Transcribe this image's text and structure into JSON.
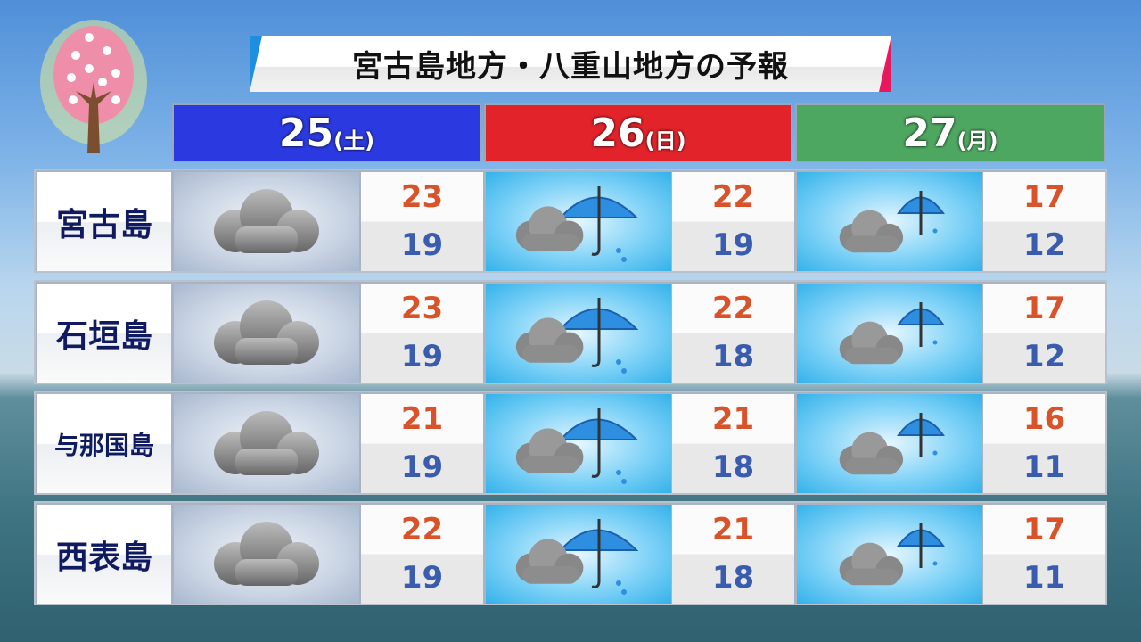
{
  "title": "宮古島地方・八重山地方の予報",
  "days": [
    {
      "num": "25",
      "weekday": "(土)",
      "color": "#2b3ae0"
    },
    {
      "num": "26",
      "weekday": "(日)",
      "color": "#e2232a"
    },
    {
      "num": "27",
      "weekday": "(月)",
      "color": "#4ea760"
    }
  ],
  "rows": [
    {
      "place": "宮古島",
      "forecast": [
        {
          "icon": "cloud-icon",
          "high": "23",
          "low": "19"
        },
        {
          "icon": "cloud-rain-icon",
          "high": "22",
          "low": "19"
        },
        {
          "icon": "cloud-occasional-rain-icon",
          "high": "17",
          "low": "12"
        }
      ]
    },
    {
      "place": "石垣島",
      "forecast": [
        {
          "icon": "cloud-icon",
          "high": "23",
          "low": "19"
        },
        {
          "icon": "cloud-rain-icon",
          "high": "22",
          "low": "18"
        },
        {
          "icon": "cloud-occasional-rain-icon",
          "high": "17",
          "low": "12"
        }
      ]
    },
    {
      "place": "与那国島",
      "forecast": [
        {
          "icon": "cloud-icon",
          "high": "21",
          "low": "19"
        },
        {
          "icon": "cloud-rain-icon",
          "high": "21",
          "low": "18"
        },
        {
          "icon": "cloud-occasional-rain-icon",
          "high": "16",
          "low": "11"
        }
      ]
    },
    {
      "place": "西表島",
      "forecast": [
        {
          "icon": "cloud-icon",
          "high": "22",
          "low": "19"
        },
        {
          "icon": "cloud-rain-icon",
          "high": "21",
          "low": "18"
        },
        {
          "icon": "cloud-occasional-rain-icon",
          "high": "17",
          "low": "11"
        }
      ]
    }
  ],
  "colors": {
    "high": "#d9532a",
    "low": "#3a5cae",
    "label": "#101a60"
  }
}
